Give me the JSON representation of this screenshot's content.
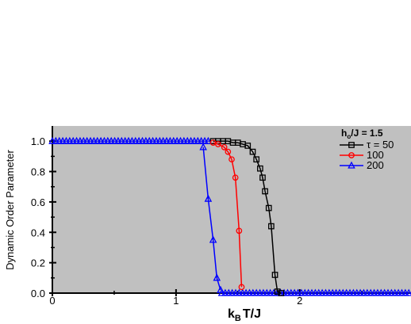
{
  "chart_data": {
    "type": "line",
    "xlabel": {
      "main": "k",
      "sub": "B",
      "rest": "T/J"
    },
    "ylabel": "Dynamic Order Parameter",
    "xlim": [
      0,
      2.9
    ],
    "ylim": [
      0.0,
      1.1
    ],
    "xticks": [
      0,
      1,
      2
    ],
    "yticks": [
      0.0,
      0.2,
      0.4,
      0.6,
      0.8,
      1.0
    ],
    "x_tick_labels": [
      "0",
      "1",
      "2"
    ],
    "y_tick_labels": [
      "0.0",
      "0.2",
      "0.4",
      "0.6",
      "0.8",
      "1.0"
    ],
    "grid": false,
    "background": "#c0c0c0",
    "legend": {
      "title": {
        "pre": "h",
        "sub": "o",
        "post": "/J = 1.5"
      },
      "position": "top-right",
      "items": [
        "τ = 50",
        "100",
        "200"
      ]
    },
    "series": [
      {
        "name": "τ = 50",
        "color": "#000000",
        "marker": "square",
        "points": [
          [
            1.3,
            1.0
          ],
          [
            1.34,
            1.0
          ],
          [
            1.38,
            1.0
          ],
          [
            1.42,
            1.0
          ],
          [
            1.46,
            0.99
          ],
          [
            1.5,
            0.99
          ],
          [
            1.54,
            0.98
          ],
          [
            1.58,
            0.97
          ],
          [
            1.62,
            0.93
          ],
          [
            1.65,
            0.88
          ],
          [
            1.68,
            0.82
          ],
          [
            1.7,
            0.76
          ],
          [
            1.72,
            0.67
          ],
          [
            1.75,
            0.56
          ],
          [
            1.77,
            0.44
          ],
          [
            1.8,
            0.12
          ],
          [
            1.82,
            0.01
          ],
          [
            1.85,
            0.0
          ]
        ]
      },
      {
        "name": "100",
        "color": "#ff0000",
        "marker": "circle",
        "points": [
          [
            1.3,
            0.99
          ],
          [
            1.34,
            0.98
          ],
          [
            1.39,
            0.96
          ],
          [
            1.42,
            0.93
          ],
          [
            1.45,
            0.88
          ],
          [
            1.48,
            0.76
          ],
          [
            1.51,
            0.41
          ],
          [
            1.53,
            0.04
          ]
        ]
      },
      {
        "name": "200",
        "color": "#0000ff",
        "marker": "triangle",
        "points": [
          [
            1.22,
            0.96
          ],
          [
            1.26,
            0.62
          ],
          [
            1.3,
            0.35
          ],
          [
            1.33,
            0.1
          ],
          [
            1.36,
            0.02
          ]
        ]
      }
    ],
    "baseline": {
      "y": 1.0,
      "x_from": 0.0,
      "x_to": 1.28,
      "step": 0.028
    },
    "floor": {
      "y": 0.0,
      "x_from": 1.37,
      "x_to": 2.9,
      "step": 0.028
    }
  }
}
